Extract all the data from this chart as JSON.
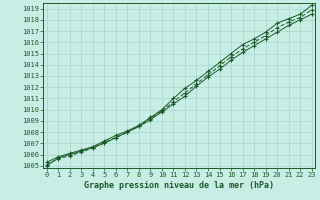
{
  "title": "Graphe pression niveau de la mer (hPa)",
  "background_color": "#c8ede4",
  "grid_color": "#a8d8cc",
  "line_color": "#1a5c2a",
  "ylim": [
    1004.8,
    1019.5
  ],
  "xlim": [
    -0.3,
    23.3
  ],
  "yticks": [
    1005,
    1006,
    1007,
    1008,
    1009,
    1010,
    1011,
    1012,
    1013,
    1014,
    1015,
    1016,
    1017,
    1018,
    1019
  ],
  "xticks": [
    0,
    1,
    2,
    3,
    4,
    5,
    6,
    7,
    8,
    9,
    10,
    11,
    12,
    13,
    14,
    15,
    16,
    17,
    18,
    19,
    20,
    21,
    22,
    23
  ],
  "x_labels": [
    "0",
    "1",
    "2",
    "3",
    "4",
    "5",
    "6",
    "7",
    "8",
    "9",
    "10",
    "11",
    "12",
    "13",
    "14",
    "15",
    "16",
    "17",
    "18",
    "19",
    "20",
    "21",
    "22",
    "23"
  ],
  "line1": [
    1005.3,
    1005.8,
    1006.1,
    1006.4,
    1006.7,
    1007.2,
    1007.7,
    1008.1,
    1008.6,
    1009.3,
    1010.0,
    1011.0,
    1011.9,
    1012.6,
    1013.4,
    1014.2,
    1015.0,
    1015.8,
    1016.3,
    1016.9,
    1017.7,
    1018.1,
    1018.5,
    1019.3
  ],
  "line2": [
    1005.0,
    1005.7,
    1006.0,
    1006.3,
    1006.6,
    1007.0,
    1007.5,
    1008.0,
    1008.5,
    1009.1,
    1009.8,
    1010.5,
    1011.2,
    1012.1,
    1012.9,
    1013.6,
    1014.4,
    1015.1,
    1015.7,
    1016.3,
    1016.9,
    1017.5,
    1018.0,
    1018.5
  ],
  "line3": [
    1005.1,
    1005.6,
    1005.9,
    1006.2,
    1006.6,
    1007.1,
    1007.5,
    1008.0,
    1008.5,
    1009.2,
    1009.9,
    1010.7,
    1011.5,
    1012.3,
    1013.1,
    1013.9,
    1014.7,
    1015.4,
    1016.0,
    1016.6,
    1017.3,
    1017.8,
    1018.2,
    1018.9
  ],
  "tick_fontsize": 5,
  "xlabel_fontsize": 6
}
